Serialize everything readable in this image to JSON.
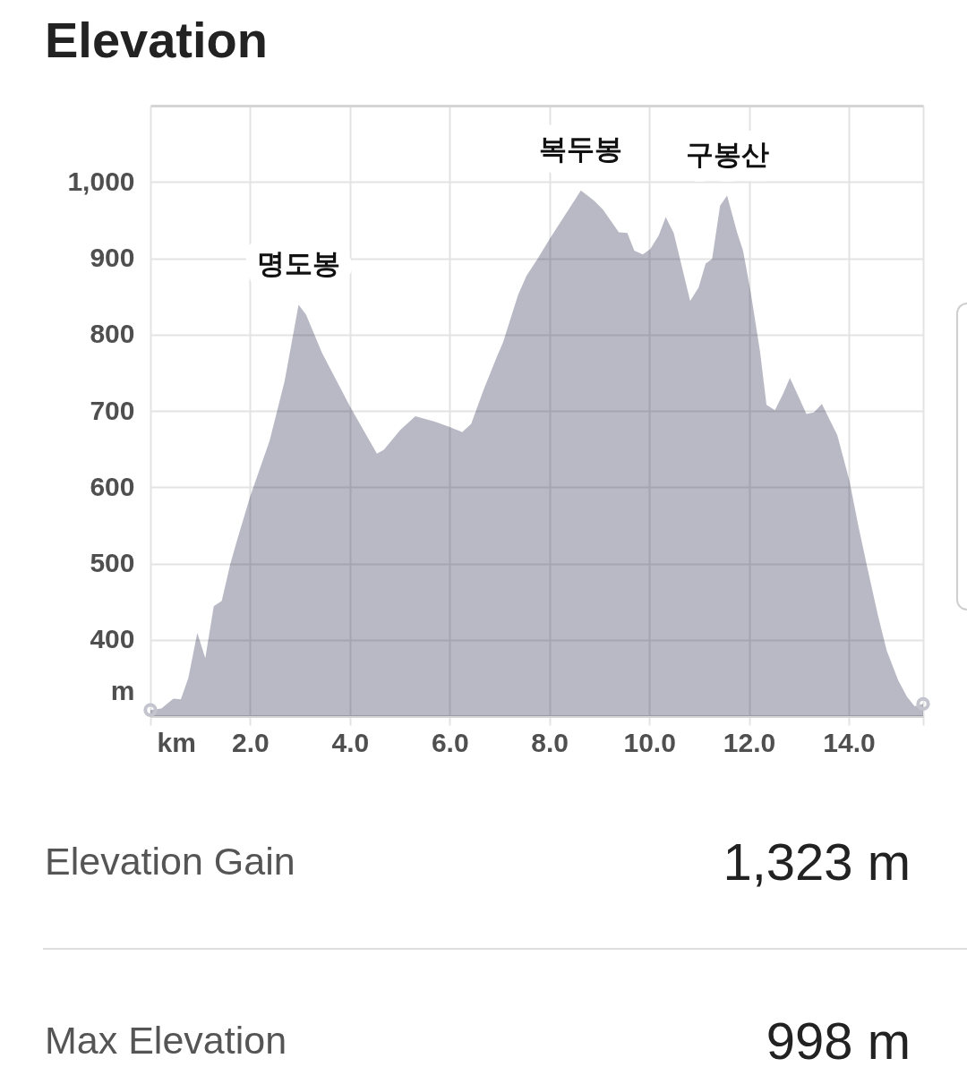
{
  "chart_data": {
    "type": "area",
    "title": "Elevation",
    "xlabel": "km",
    "ylabel": "m",
    "xlim": [
      0,
      15.49
    ],
    "xticks": [
      {
        "value": 2,
        "label": "2.0"
      },
      {
        "value": 4,
        "label": "4.0"
      },
      {
        "value": 6,
        "label": "6.0"
      },
      {
        "value": 8,
        "label": "8.0"
      },
      {
        "value": 10,
        "label": "10.0"
      },
      {
        "value": 12,
        "label": "12.0"
      },
      {
        "value": 14,
        "label": "14.0"
      }
    ],
    "ylim": [
      300,
      1100
    ],
    "yticks": [
      400,
      500,
      600,
      700,
      800,
      900,
      {
        "value": 1000,
        "label": "1,000"
      }
    ],
    "grid": true,
    "series": [
      {
        "color": "#b9b9c6",
        "x": [
          0,
          0.22,
          0.46,
          0.61,
          0.76,
          0.94,
          1.1,
          1.27,
          1.43,
          1.6,
          1.74,
          2,
          2.39,
          2.69,
          2.97,
          3.12,
          3.44,
          4,
          4.54,
          4.68,
          5.01,
          5.31,
          5.7,
          6,
          6.25,
          6.43,
          6.68,
          6.94,
          7.07,
          7.37,
          7.54,
          7.76,
          8,
          8.63,
          8.9,
          9.07,
          9.39,
          9.56,
          9.7,
          9.87,
          10.02,
          10.19,
          10.33,
          10.49,
          10.82,
          10.99,
          11.13,
          11.26,
          11.42,
          11.56,
          11.76,
          11.88,
          12.03,
          12.22,
          12.35,
          12.52,
          12.68,
          12.82,
          12.99,
          13.15,
          13.3,
          13.46,
          13.62,
          13.77,
          14.01,
          14.19,
          14.37,
          14.58,
          14.76,
          14.99,
          15.17,
          15.32,
          15.49
        ],
        "values": [
          308,
          310,
          323,
          322,
          350,
          409,
          376,
          444,
          451,
          499,
          531,
          588,
          661,
          739,
          839,
          826,
          776,
          706,
          644,
          649,
          675,
          693,
          686,
          679,
          672,
          683,
          728,
          770,
          790,
          852,
          877,
          899,
          925,
          989,
          975,
          964,
          934,
          933,
          910,
          905,
          912,
          930,
          954,
          933,
          844,
          862,
          893,
          899,
          969,
          982,
          934,
          910,
          857,
          778,
          708,
          701,
          722,
          743,
          719,
          696,
          698,
          709,
          688,
          668,
          609,
          550,
          495,
          433,
          386,
          347,
          325,
          313,
          316
        ]
      },
      {
        "type": "scatter",
        "color": "#c4c4ce",
        "marker": "circle",
        "x": [
          0,
          15.49
        ],
        "values": [
          308,
          316
        ]
      }
    ],
    "annotations": [
      {
        "text": "명도봉",
        "x": 2.97,
        "y": 839
      },
      {
        "text": "복두봉",
        "x": 8.63,
        "y": 989
      },
      {
        "text": "구봉산",
        "x": 11.56,
        "y": 982
      },
      "Elevation Gain",
      "1,323 m",
      "Max Elevation",
      "998 m"
    ]
  }
}
